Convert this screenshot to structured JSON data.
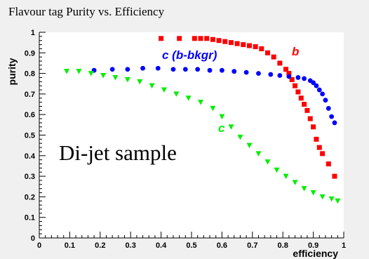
{
  "chart_data": {
    "type": "scatter",
    "title": "Flavour tag Purity vs. Efficiency",
    "xlabel": "efficiency",
    "ylabel": "purity",
    "xlim": [
      0,
      1
    ],
    "ylim": [
      0,
      1
    ],
    "x_ticks": [
      "0",
      "0.1",
      "0.2",
      "0.3",
      "0.4",
      "0.5",
      "0.6",
      "0.7",
      "0.8",
      "0.9",
      "1"
    ],
    "y_ticks": [
      "0",
      "0.1",
      "0.2",
      "0.3",
      "0.4",
      "0.5",
      "0.6",
      "0.7",
      "0.8",
      "0.9",
      "1"
    ],
    "grid": false,
    "annotation": "Di-jet sample",
    "series": [
      {
        "name": "b",
        "color": "#ff0000",
        "marker": "square",
        "x": [
          0.4,
          0.46,
          0.51,
          0.53,
          0.55,
          0.57,
          0.59,
          0.61,
          0.63,
          0.65,
          0.67,
          0.69,
          0.71,
          0.73,
          0.75,
          0.77,
          0.79,
          0.81,
          0.82,
          0.83,
          0.84,
          0.85,
          0.86,
          0.87,
          0.88,
          0.89,
          0.9,
          0.91,
          0.92,
          0.93,
          0.95,
          0.97
        ],
        "y": [
          0.97,
          0.97,
          0.97,
          0.97,
          0.97,
          0.965,
          0.96,
          0.955,
          0.95,
          0.945,
          0.94,
          0.935,
          0.93,
          0.92,
          0.9,
          0.88,
          0.85,
          0.82,
          0.8,
          0.77,
          0.74,
          0.71,
          0.68,
          0.65,
          0.62,
          0.58,
          0.54,
          0.48,
          0.44,
          0.41,
          0.36,
          0.3
        ]
      },
      {
        "name": "c (b-bkgr)",
        "color": "#0000ff",
        "marker": "circle",
        "x": [
          0.18,
          0.24,
          0.29,
          0.34,
          0.39,
          0.44,
          0.48,
          0.52,
          0.56,
          0.6,
          0.64,
          0.68,
          0.72,
          0.76,
          0.79,
          0.82,
          0.85,
          0.87,
          0.89,
          0.9,
          0.91,
          0.92,
          0.93,
          0.94,
          0.95,
          0.96,
          0.97
        ],
        "y": [
          0.815,
          0.82,
          0.82,
          0.825,
          0.825,
          0.82,
          0.82,
          0.82,
          0.815,
          0.815,
          0.81,
          0.805,
          0.8,
          0.795,
          0.79,
          0.785,
          0.78,
          0.775,
          0.765,
          0.755,
          0.74,
          0.72,
          0.7,
          0.67,
          0.63,
          0.59,
          0.56
        ]
      },
      {
        "name": "c",
        "color": "#00ee00",
        "marker": "triangle-down",
        "x": [
          0.09,
          0.13,
          0.17,
          0.21,
          0.25,
          0.29,
          0.33,
          0.37,
          0.41,
          0.45,
          0.49,
          0.53,
          0.57,
          0.6,
          0.63,
          0.66,
          0.69,
          0.72,
          0.75,
          0.78,
          0.81,
          0.84,
          0.87,
          0.9,
          0.93,
          0.96,
          0.98
        ],
        "y": [
          0.81,
          0.81,
          0.8,
          0.79,
          0.78,
          0.77,
          0.76,
          0.74,
          0.72,
          0.7,
          0.68,
          0.66,
          0.63,
          0.59,
          0.54,
          0.49,
          0.45,
          0.41,
          0.37,
          0.33,
          0.3,
          0.27,
          0.24,
          0.22,
          0.2,
          0.19,
          0.18
        ]
      }
    ]
  }
}
